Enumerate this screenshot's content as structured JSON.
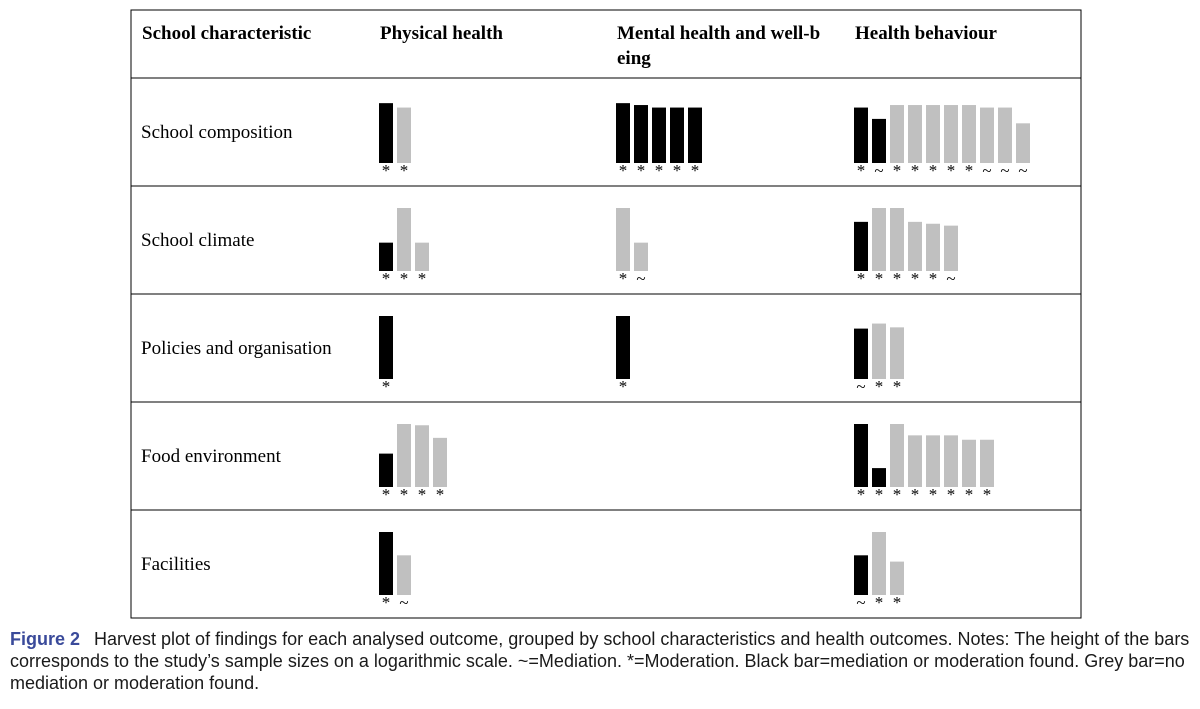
{
  "chart_data": {
    "type": "bar",
    "columns": [
      "School characteristic",
      "Physical health",
      "Mental health and well-being",
      "Health behaviour"
    ],
    "colors": {
      "found": "#000000",
      "not_found": "#c0c0c0"
    },
    "rows": [
      {
        "label": "School composition",
        "cells": [
          [
            {
              "h": 0.95,
              "found": true,
              "sym": "*"
            },
            {
              "h": 0.88,
              "found": false,
              "sym": "*"
            }
          ],
          [
            {
              "h": 0.95,
              "found": true,
              "sym": "*"
            },
            {
              "h": 0.92,
              "found": true,
              "sym": "*"
            },
            {
              "h": 0.88,
              "found": true,
              "sym": "*"
            },
            {
              "h": 0.88,
              "found": true,
              "sym": "*"
            },
            {
              "h": 0.88,
              "found": true,
              "sym": "*"
            }
          ],
          [
            {
              "h": 0.88,
              "found": true,
              "sym": "*"
            },
            {
              "h": 0.7,
              "found": true,
              "sym": "~"
            },
            {
              "h": 0.92,
              "found": false,
              "sym": "*"
            },
            {
              "h": 0.92,
              "found": false,
              "sym": "*"
            },
            {
              "h": 0.92,
              "found": false,
              "sym": "*"
            },
            {
              "h": 0.92,
              "found": false,
              "sym": "*"
            },
            {
              "h": 0.92,
              "found": false,
              "sym": "*"
            },
            {
              "h": 0.88,
              "found": false,
              "sym": "~"
            },
            {
              "h": 0.88,
              "found": false,
              "sym": "~"
            },
            {
              "h": 0.63,
              "found": false,
              "sym": "~"
            }
          ]
        ]
      },
      {
        "label": "School climate",
        "cells": [
          [
            {
              "h": 0.45,
              "found": true,
              "sym": "*"
            },
            {
              "h": 1.0,
              "found": false,
              "sym": "*"
            },
            {
              "h": 0.45,
              "found": false,
              "sym": "*"
            }
          ],
          [
            {
              "h": 1.0,
              "found": false,
              "sym": "*"
            },
            {
              "h": 0.45,
              "found": false,
              "sym": "~"
            }
          ],
          [
            {
              "h": 0.78,
              "found": true,
              "sym": "*"
            },
            {
              "h": 1.0,
              "found": false,
              "sym": "*"
            },
            {
              "h": 1.0,
              "found": false,
              "sym": "*"
            },
            {
              "h": 0.78,
              "found": false,
              "sym": "*"
            },
            {
              "h": 0.75,
              "found": false,
              "sym": "*"
            },
            {
              "h": 0.72,
              "found": false,
              "sym": "~"
            }
          ]
        ]
      },
      {
        "label": "Policies and organisation",
        "cells": [
          [
            {
              "h": 1.0,
              "found": true,
              "sym": "*"
            }
          ],
          [
            {
              "h": 1.0,
              "found": true,
              "sym": "*"
            }
          ],
          [
            {
              "h": 0.8,
              "found": true,
              "sym": "~"
            },
            {
              "h": 0.88,
              "found": false,
              "sym": "*"
            },
            {
              "h": 0.82,
              "found": false,
              "sym": "*"
            }
          ]
        ]
      },
      {
        "label": "Food environment",
        "cells": [
          [
            {
              "h": 0.53,
              "found": true,
              "sym": "*"
            },
            {
              "h": 1.0,
              "found": false,
              "sym": "*"
            },
            {
              "h": 0.98,
              "found": false,
              "sym": "*"
            },
            {
              "h": 0.78,
              "found": false,
              "sym": "*"
            }
          ],
          [],
          [
            {
              "h": 1.0,
              "found": true,
              "sym": "*"
            },
            {
              "h": 0.3,
              "found": true,
              "sym": "*"
            },
            {
              "h": 1.0,
              "found": false,
              "sym": "*"
            },
            {
              "h": 0.82,
              "found": false,
              "sym": "*"
            },
            {
              "h": 0.82,
              "found": false,
              "sym": "*"
            },
            {
              "h": 0.82,
              "found": false,
              "sym": "*"
            },
            {
              "h": 0.75,
              "found": false,
              "sym": "*"
            },
            {
              "h": 0.75,
              "found": false,
              "sym": "*"
            }
          ]
        ]
      },
      {
        "label": "Facilities",
        "cells": [
          [
            {
              "h": 1.0,
              "found": true,
              "sym": "*"
            },
            {
              "h": 0.63,
              "found": false,
              "sym": "~"
            }
          ],
          [],
          [
            {
              "h": 0.63,
              "found": true,
              "sym": "~"
            },
            {
              "h": 1.0,
              "found": false,
              "sym": "*"
            },
            {
              "h": 0.53,
              "found": false,
              "sym": "*"
            }
          ]
        ]
      }
    ]
  },
  "caption": {
    "label": "Figure 2",
    "text": "Harvest plot of findings for each analysed outcome, grouped by school characteristics and health outcomes. Notes: The height of the bars corresponds to the study’s sample sizes on a logarithmic scale. ~=Mediation. *=Moderation. Black bar=mediation or moderation found. Grey bar=no mediation or moderation found."
  }
}
